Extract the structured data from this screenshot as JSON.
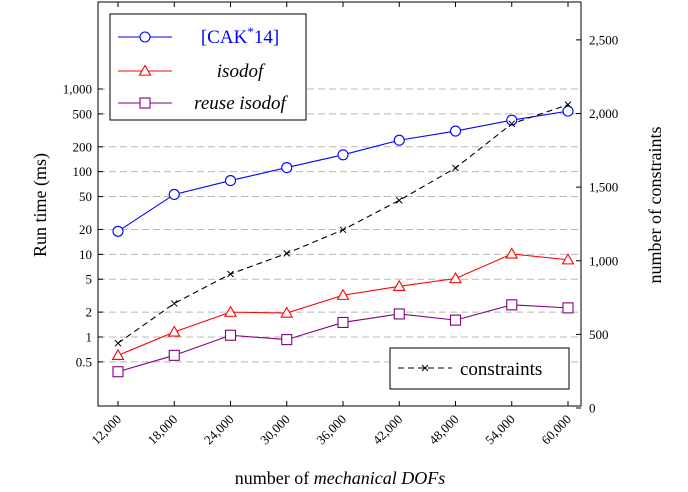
{
  "chart_data": {
    "type": "line",
    "x_label_prefix": "number of ",
    "x_label_emph": "mechanical DOFs",
    "y_left_label": "Run time (ms)",
    "y_right_label": "number of constraints",
    "y_left_scale": "log",
    "y_left_ylim": [
      0.2,
      5500
    ],
    "y_right_ylim": [
      0,
      2700
    ],
    "x_ticks": [
      12000,
      18000,
      24000,
      30000,
      36000,
      42000,
      48000,
      54000,
      60000
    ],
    "x_tick_labels": [
      "12,000",
      "18,000",
      "24,000",
      "30,000",
      "36,000",
      "42,000",
      "48,000",
      "54,000",
      "60,000"
    ],
    "y_left_ticks": [
      0.5,
      1,
      2,
      5,
      10,
      20,
      50,
      100,
      200,
      500,
      1000
    ],
    "y_left_tick_labels": [
      "0.5",
      "1",
      "2",
      "5",
      "10",
      "20",
      "50",
      "100",
      "200",
      "500",
      "1,000"
    ],
    "y_right_ticks": [
      0,
      500,
      1000,
      1500,
      2000,
      2500
    ],
    "y_right_tick_labels": [
      "0",
      "500",
      "1,000",
      "1,500",
      "2,000",
      "2,500"
    ],
    "grid": "horizontal dashed at left-axis ticks",
    "series": [
      {
        "name": "[CAK*14]",
        "name_main": "[CAK",
        "name_sup": "*",
        "name_tail": "14]",
        "axis": "left",
        "marker": "circle",
        "color": "#0000ff",
        "style": "solid",
        "x": [
          12000,
          18000,
          24000,
          30000,
          36000,
          42000,
          48000,
          54000,
          60000
        ],
        "y": [
          19,
          53,
          78,
          112,
          160,
          240,
          310,
          420,
          540
        ]
      },
      {
        "name": "isodof",
        "axis": "left",
        "marker": "triangle",
        "color": "#ff0000",
        "style": "solid",
        "x": [
          12000,
          18000,
          24000,
          30000,
          36000,
          42000,
          48000,
          54000,
          60000
        ],
        "y": [
          0.6,
          1.15,
          2.0,
          1.95,
          3.2,
          4.1,
          5.1,
          10.1,
          8.6
        ]
      },
      {
        "name": "reuse isodof",
        "axis": "left",
        "marker": "square",
        "color": "#800080",
        "style": "solid",
        "x": [
          12000,
          18000,
          24000,
          30000,
          36000,
          42000,
          48000,
          54000,
          60000
        ],
        "y": [
          0.38,
          0.6,
          1.05,
          0.93,
          1.5,
          1.9,
          1.6,
          2.45,
          2.25
        ]
      },
      {
        "name": "constraints",
        "axis": "right",
        "marker": "x",
        "color": "#000000",
        "style": "dashed",
        "x": [
          12000,
          18000,
          24000,
          30000,
          36000,
          42000,
          48000,
          54000,
          60000
        ],
        "y": [
          440,
          710,
          910,
          1050,
          1210,
          1410,
          1630,
          1930,
          2060
        ]
      }
    ],
    "legends": [
      {
        "position": "top-left",
        "series": [
          0,
          1,
          2
        ]
      },
      {
        "position": "bottom-right",
        "series": [
          3
        ]
      }
    ]
  }
}
